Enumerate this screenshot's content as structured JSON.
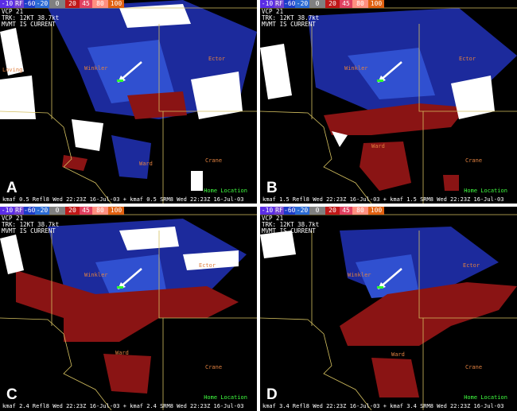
{
  "colorbar": [
    {
      "label": "-10",
      "color": "#5a2ce6"
    },
    {
      "label": "RF",
      "color": "#7040d0"
    },
    {
      "label": "-60",
      "color": "#1c3cc8"
    },
    {
      "label": "-20",
      "color": "#2a6ad4"
    },
    {
      "label": "0",
      "color": "#808080"
    },
    {
      "label": "20",
      "color": "#c01818"
    },
    {
      "label": "45",
      "color": "#e04060"
    },
    {
      "label": "80",
      "color": "#ff9080"
    },
    {
      "label": "100",
      "color": "#e06010"
    }
  ],
  "panels": [
    {
      "label": "A",
      "header_lines": [
        "VCP 21",
        "TRK: 12KT 38.7kt",
        "MVMT IS CURRENT"
      ],
      "counties": {
        "loving": "Loving",
        "winkler": "Winkler",
        "ector": "Ector",
        "ward": "Ward",
        "crane": "Crane"
      },
      "home": "Home Location",
      "footer": "kmaf 0.5 Refl8  Wed 22:23Z 16-Jul-03 + kmaf 0.5 SRM8  Wed 22:23Z 16-Jul-03"
    },
    {
      "label": "B",
      "header_lines": [
        "VCP 21",
        "TRK: 12KT 38.7kt",
        "MVMT IS CURRENT"
      ],
      "counties": {
        "loving": "",
        "winkler": "Winkler",
        "ector": "Ector",
        "ward": "Ward",
        "crane": "Crane"
      },
      "home": "Home Location",
      "footer": "kmaf 1.5 Refl8  Wed 22:23Z 16-Jul-03 + kmaf 1.5 SRM8  Wed 22:23Z 16-Jul-03"
    },
    {
      "label": "C",
      "header_lines": [
        "VCP 21",
        "TRK: 12KT 38.7kt",
        "MVMT IS CURRENT"
      ],
      "counties": {
        "loving": "",
        "winkler": "Winkler",
        "ector": "Ector",
        "ward": "Ward",
        "crane": "Crane"
      },
      "home": "Home Location",
      "footer": "kmaf 2.4 Refl8  Wed 22:23Z 16-Jul-03 + kmaf 2.4 SRM8  Wed 22:23Z 16-Jul-03"
    },
    {
      "label": "D",
      "header_lines": [
        "VCP 21",
        "TRK: 12KT 38.7kt",
        "MVMT IS CURRENT"
      ],
      "counties": {
        "loving": "",
        "winkler": "Winkler",
        "ector": "Ector",
        "ward": "Ward",
        "crane": "Crane"
      },
      "home": "Home Location",
      "footer": "kmaf 3.4 Refl8  Wed 22:23Z 16-Jul-03 + kmaf 3.4 SRM8  Wed 22:23Z 16-Jul-03"
    }
  ]
}
